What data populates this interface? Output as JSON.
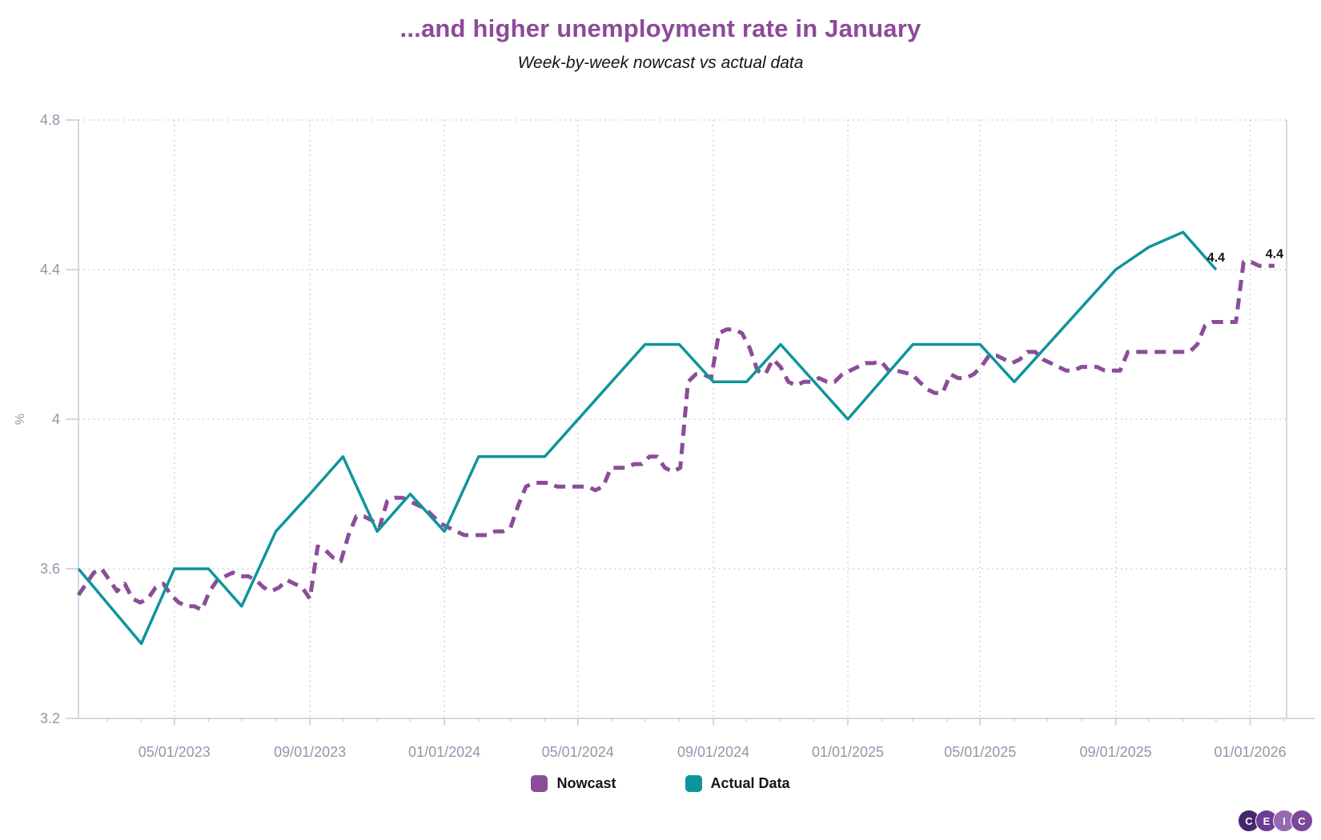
{
  "header": {
    "title": "...and higher unemployment rate in January",
    "subtitle": "Week-by-week nowcast vs actual data"
  },
  "chart_data": {
    "type": "line",
    "title": "...and higher unemployment rate in January",
    "subtitle": "Week-by-week nowcast vs actual data",
    "ylabel": "%",
    "ylim": [
      3.2,
      4.8
    ],
    "y_ticks": [
      {
        "value": 3.2,
        "label": "3.2"
      },
      {
        "value": 3.6,
        "label": "3.6"
      },
      {
        "value": 4.0,
        "label": "4"
      },
      {
        "value": 4.4,
        "label": "4.4"
      },
      {
        "value": 4.8,
        "label": "4.8"
      }
    ],
    "x_domain": [
      "2023-02-03",
      "2026-02-03"
    ],
    "x_ticks": [
      {
        "date": "2023-05-01",
        "label": "05/01/2023"
      },
      {
        "date": "2023-09-01",
        "label": "09/01/2023"
      },
      {
        "date": "2024-01-01",
        "label": "01/01/2024"
      },
      {
        "date": "2024-05-01",
        "label": "05/01/2024"
      },
      {
        "date": "2024-09-01",
        "label": "09/01/2024"
      },
      {
        "date": "2025-01-01",
        "label": "01/01/2025"
      },
      {
        "date": "2025-05-01",
        "label": "05/01/2025"
      },
      {
        "date": "2025-09-01",
        "label": "09/01/2025"
      },
      {
        "date": "2026-01-01",
        "label": "01/01/2026"
      }
    ],
    "grid": "dotted",
    "legend_position": "bottom",
    "series": [
      {
        "name": "Nowcast",
        "color": "#8b4d98",
        "style": "dashed",
        "cadence": "weekly",
        "start_date": "2023-02-03",
        "step_days": 7,
        "end_label": "4.4",
        "values": [
          3.53,
          3.56,
          3.59,
          3.6,
          3.57,
          3.54,
          3.56,
          3.52,
          3.51,
          3.52,
          3.55,
          3.56,
          3.53,
          3.51,
          3.5,
          3.5,
          3.49,
          3.54,
          3.57,
          3.58,
          3.59,
          3.58,
          3.58,
          3.57,
          3.55,
          3.54,
          3.55,
          3.57,
          3.56,
          3.55,
          3.52,
          3.66,
          3.65,
          3.63,
          3.62,
          3.69,
          3.74,
          3.74,
          3.73,
          3.71,
          3.78,
          3.79,
          3.79,
          3.78,
          3.77,
          3.76,
          3.74,
          3.72,
          3.71,
          3.7,
          3.69,
          3.69,
          3.69,
          3.69,
          3.7,
          3.7,
          3.71,
          3.77,
          3.82,
          3.83,
          3.83,
          3.83,
          3.82,
          3.82,
          3.82,
          3.82,
          3.82,
          3.81,
          3.82,
          3.87,
          3.87,
          3.87,
          3.88,
          3.88,
          3.9,
          3.9,
          3.87,
          3.86,
          3.87,
          4.1,
          4.12,
          4.12,
          4.11,
          4.23,
          4.24,
          4.24,
          4.23,
          4.19,
          4.13,
          4.12,
          4.16,
          4.14,
          4.1,
          4.09,
          4.1,
          4.1,
          4.11,
          4.1,
          4.1,
          4.12,
          4.13,
          4.14,
          4.15,
          4.15,
          4.155,
          4.13,
          4.13,
          4.125,
          4.12,
          4.1,
          4.08,
          4.07,
          4.07,
          4.12,
          4.11,
          4.11,
          4.12,
          4.14,
          4.17,
          4.17,
          4.16,
          4.15,
          4.16,
          4.18,
          4.18,
          4.16,
          4.15,
          4.14,
          4.13,
          4.13,
          4.14,
          4.14,
          4.14,
          4.13,
          4.13,
          4.13,
          4.18,
          4.18,
          4.18,
          4.18,
          4.18,
          4.18,
          4.18,
          4.18,
          4.18,
          4.2,
          4.25,
          4.26,
          4.26,
          4.26,
          4.26,
          4.42,
          4.42,
          4.41,
          4.41,
          4.41
        ]
      },
      {
        "name": "Actual Data",
        "color": "#0e959b",
        "style": "solid",
        "end_label": "4.4",
        "points": [
          [
            "2023-02-03",
            3.6
          ],
          [
            "2023-04-01",
            3.4
          ],
          [
            "2023-05-01",
            3.6
          ],
          [
            "2023-06-01",
            3.6
          ],
          [
            "2023-07-01",
            3.5
          ],
          [
            "2023-08-01",
            3.7
          ],
          [
            "2023-09-01",
            3.8
          ],
          [
            "2023-10-01",
            3.9
          ],
          [
            "2023-11-01",
            3.7
          ],
          [
            "2023-12-01",
            3.8
          ],
          [
            "2024-01-01",
            3.7
          ],
          [
            "2024-02-01",
            3.9
          ],
          [
            "2024-04-01",
            3.9
          ],
          [
            "2024-07-01",
            4.2
          ],
          [
            "2024-08-01",
            4.2
          ],
          [
            "2024-09-01",
            4.1
          ],
          [
            "2024-10-01",
            4.1
          ],
          [
            "2024-11-01",
            4.2
          ],
          [
            "2025-01-01",
            4.0
          ],
          [
            "2025-03-01",
            4.2
          ],
          [
            "2025-05-01",
            4.2
          ],
          [
            "2025-06-01",
            4.1
          ],
          [
            "2025-09-01",
            4.4
          ],
          [
            "2025-10-01",
            4.46
          ],
          [
            "2025-11-01",
            4.5
          ],
          [
            "2025-12-01",
            4.4
          ]
        ]
      }
    ]
  },
  "colors": {
    "title": "#8c4a99",
    "axis_text": "#9496ab",
    "axis_line": "#c9cbd7",
    "gridline": "#d2d2da",
    "data_label": "#111111"
  },
  "logo": {
    "letters": [
      "C",
      "E",
      "I",
      "C"
    ],
    "colors": [
      "#46276e",
      "#6c3d95",
      "#9669b2",
      "#7b489c"
    ]
  }
}
